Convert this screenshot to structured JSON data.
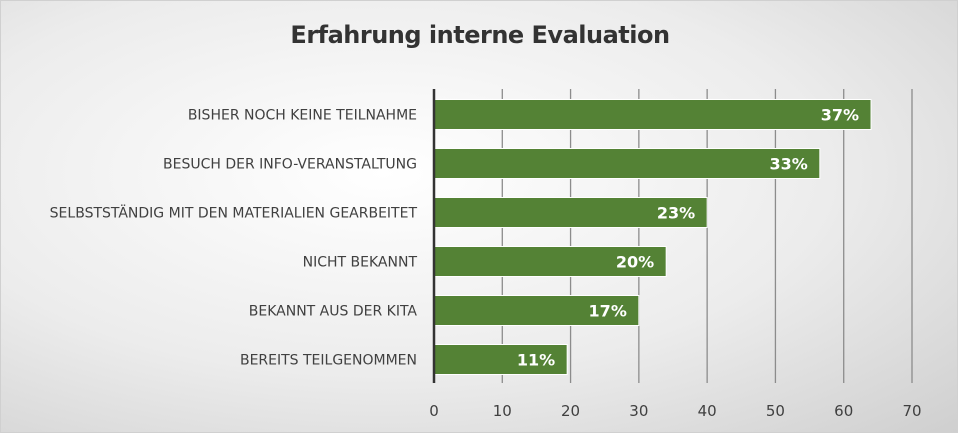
{
  "chart_data": {
    "type": "bar",
    "orientation": "horizontal",
    "title": "Erfahrung interne Evaluation",
    "categories": [
      "BISHER NOCH KEINE TEILNAHME",
      "BESUCH DER INFO-VERANSTALTUNG",
      "SELBSTSTÄNDIG MIT DEN MATERIALIEN GEARBEITET",
      "NICHT BEKANNT",
      "BEKANNT AUS DER KITA",
      "BEREITS TEILGENOMMEN"
    ],
    "values": [
      64,
      56.5,
      40,
      34,
      30,
      19.5
    ],
    "data_labels": [
      "37%",
      "33%",
      "23%",
      "20%",
      "17%",
      "11%"
    ],
    "xlim": [
      0,
      70
    ],
    "xticks": [
      "0",
      "10",
      "20",
      "30",
      "40",
      "50",
      "60",
      "70"
    ],
    "grid": "vertical",
    "bar_color": "#548235",
    "xlabel": "",
    "ylabel": ""
  }
}
